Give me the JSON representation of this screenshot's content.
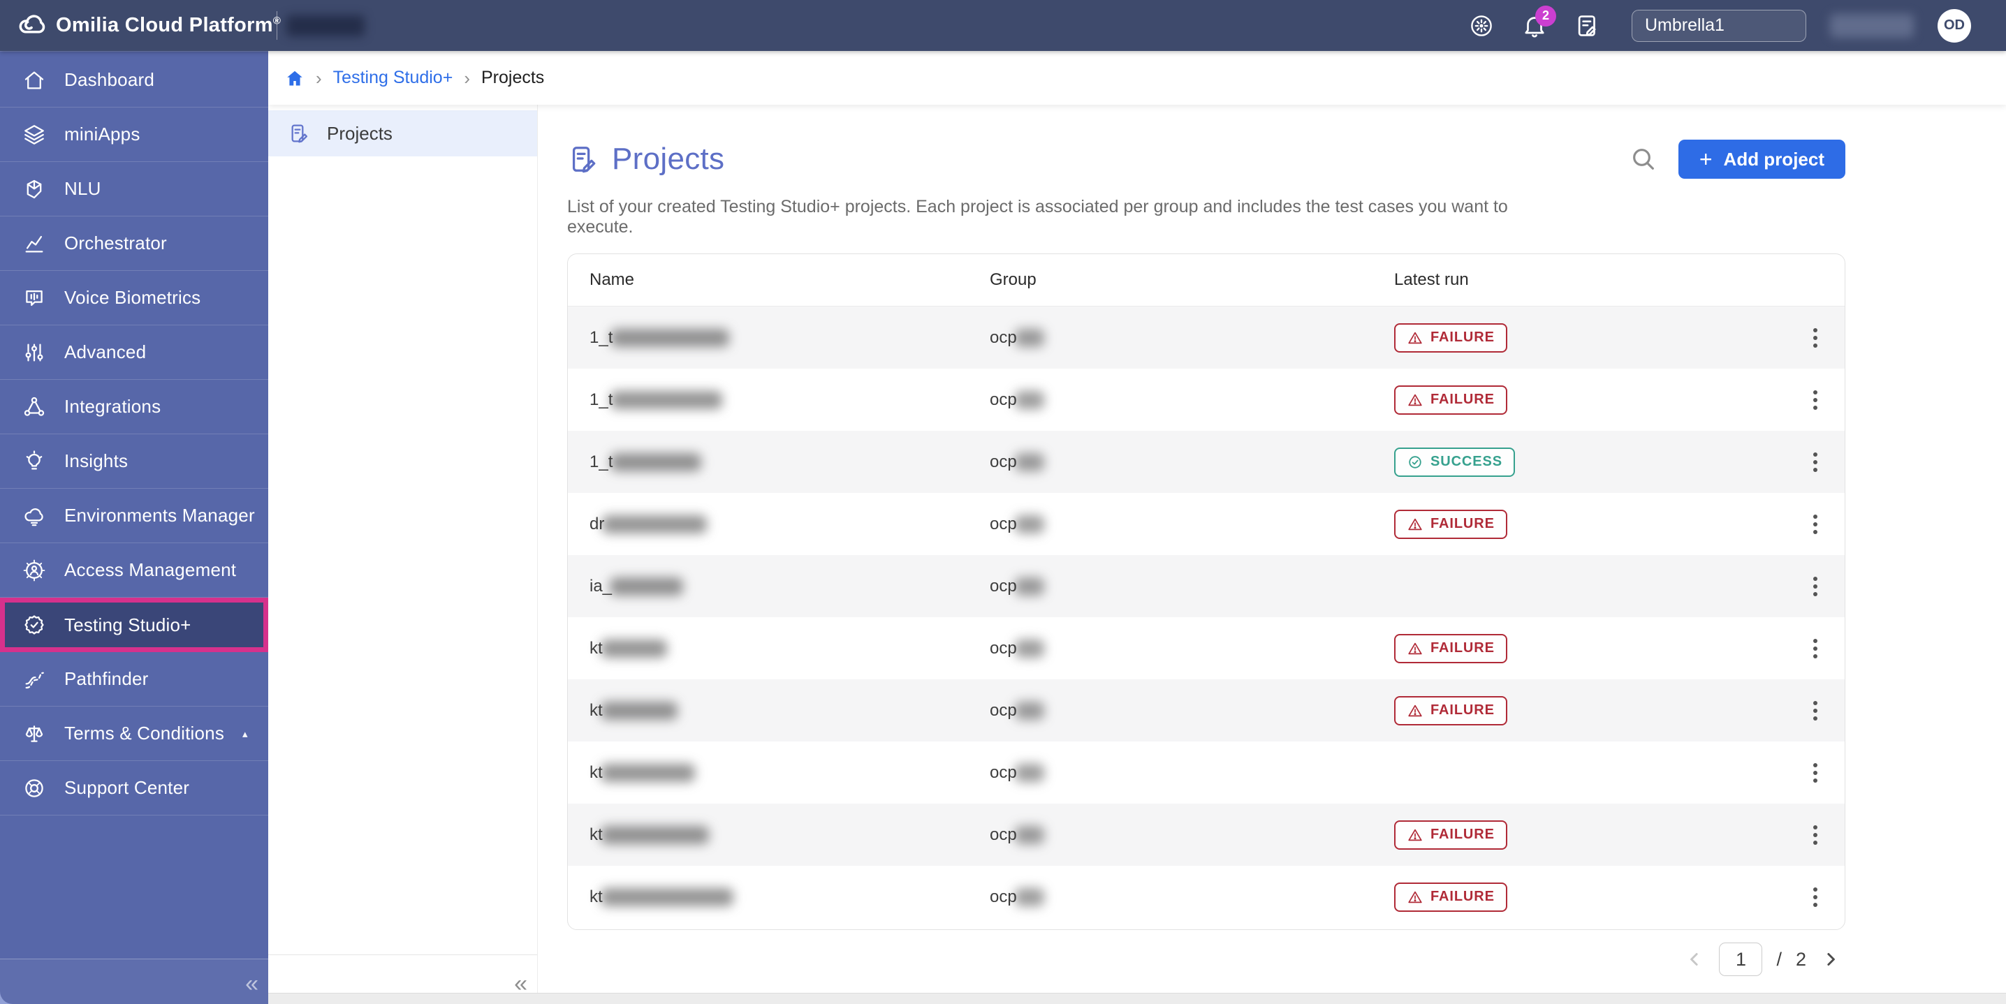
{
  "topbar": {
    "brand": "Omilia Cloud Platform",
    "brand_reg": "®",
    "notification_count": "2",
    "group_selector": "Umbrella1",
    "avatar_initials": "OD"
  },
  "sidebar": {
    "items": [
      {
        "label": "Dashboard",
        "icon": "home"
      },
      {
        "label": "miniApps",
        "icon": "miniapps"
      },
      {
        "label": "NLU",
        "icon": "nlu"
      },
      {
        "label": "Orchestrator",
        "icon": "orchestrator"
      },
      {
        "label": "Voice Biometrics",
        "icon": "voice-biometrics"
      },
      {
        "label": "Advanced",
        "icon": "advanced"
      },
      {
        "label": "Integrations",
        "icon": "integrations"
      },
      {
        "label": "Insights",
        "icon": "insights"
      },
      {
        "label": "Environments Manager",
        "icon": "environments"
      },
      {
        "label": "Access Management",
        "icon": "access"
      },
      {
        "label": "Testing Studio+",
        "icon": "testing-studio",
        "active": true
      },
      {
        "label": "Pathfinder",
        "icon": "pathfinder"
      },
      {
        "label": "Terms & Conditions",
        "icon": "terms",
        "caret": "▴"
      },
      {
        "label": "Support Center",
        "icon": "support"
      }
    ],
    "collapse_glyph": "«"
  },
  "breadcrumb": {
    "link": "Testing Studio+",
    "current": "Projects",
    "separator": "›"
  },
  "subnav": {
    "items": [
      {
        "label": "Projects",
        "active": true
      }
    ],
    "collapse_glyph": "«"
  },
  "main": {
    "title": "Projects",
    "description": "List of your created Testing Studio+ projects. Each project is associated per group and includes the test cases you want to execute.",
    "add_plus": "+",
    "add_button": "Add project"
  },
  "table": {
    "columns": [
      "Name",
      "Group",
      "Latest run"
    ],
    "rows": [
      {
        "name_prefix": "1_t",
        "name_redact_width": 170,
        "group_prefix": "ocp",
        "group_redact_width": 42,
        "status": "FAILURE"
      },
      {
        "name_prefix": "1_t",
        "name_redact_width": 160,
        "group_prefix": "ocp",
        "group_redact_width": 42,
        "status": "FAILURE"
      },
      {
        "name_prefix": "1_t",
        "name_redact_width": 130,
        "group_prefix": "ocp",
        "group_redact_width": 42,
        "status": "SUCCESS"
      },
      {
        "name_prefix": "dr",
        "name_redact_width": 150,
        "group_prefix": "ocp",
        "group_redact_width": 42,
        "status": "FAILURE"
      },
      {
        "name_prefix": "ia_",
        "name_redact_width": 105,
        "group_prefix": "ocp",
        "group_redact_width": 42,
        "status": ""
      },
      {
        "name_prefix": "kt",
        "name_redact_width": 95,
        "group_prefix": "ocp",
        "group_redact_width": 42,
        "status": "FAILURE"
      },
      {
        "name_prefix": "kt",
        "name_redact_width": 110,
        "group_prefix": "ocp",
        "group_redact_width": 42,
        "status": "FAILURE"
      },
      {
        "name_prefix": "kt",
        "name_redact_width": 135,
        "group_prefix": "ocp",
        "group_redact_width": 42,
        "status": ""
      },
      {
        "name_prefix": "kt",
        "name_redact_width": 155,
        "group_prefix": "ocp",
        "group_redact_width": 42,
        "status": "FAILURE"
      },
      {
        "name_prefix": "kt",
        "name_redact_width": 190,
        "group_prefix": "ocp",
        "group_redact_width": 42,
        "status": "FAILURE"
      }
    ]
  },
  "pagination": {
    "current": "1",
    "separator": "/",
    "total": "2"
  },
  "colors": {
    "accent_pink": "#d6318c",
    "topbar": "#3e4a6c",
    "sidebar": "#5767a9",
    "active_item": "#3a4678",
    "link_blue": "#2e6ee8",
    "title_indigo": "#5d6fc6",
    "button_blue": "#2e6ce6",
    "failure_red": "#b02a37",
    "success_teal": "#36a18e",
    "notification_magenta": "#cb3fd0"
  }
}
